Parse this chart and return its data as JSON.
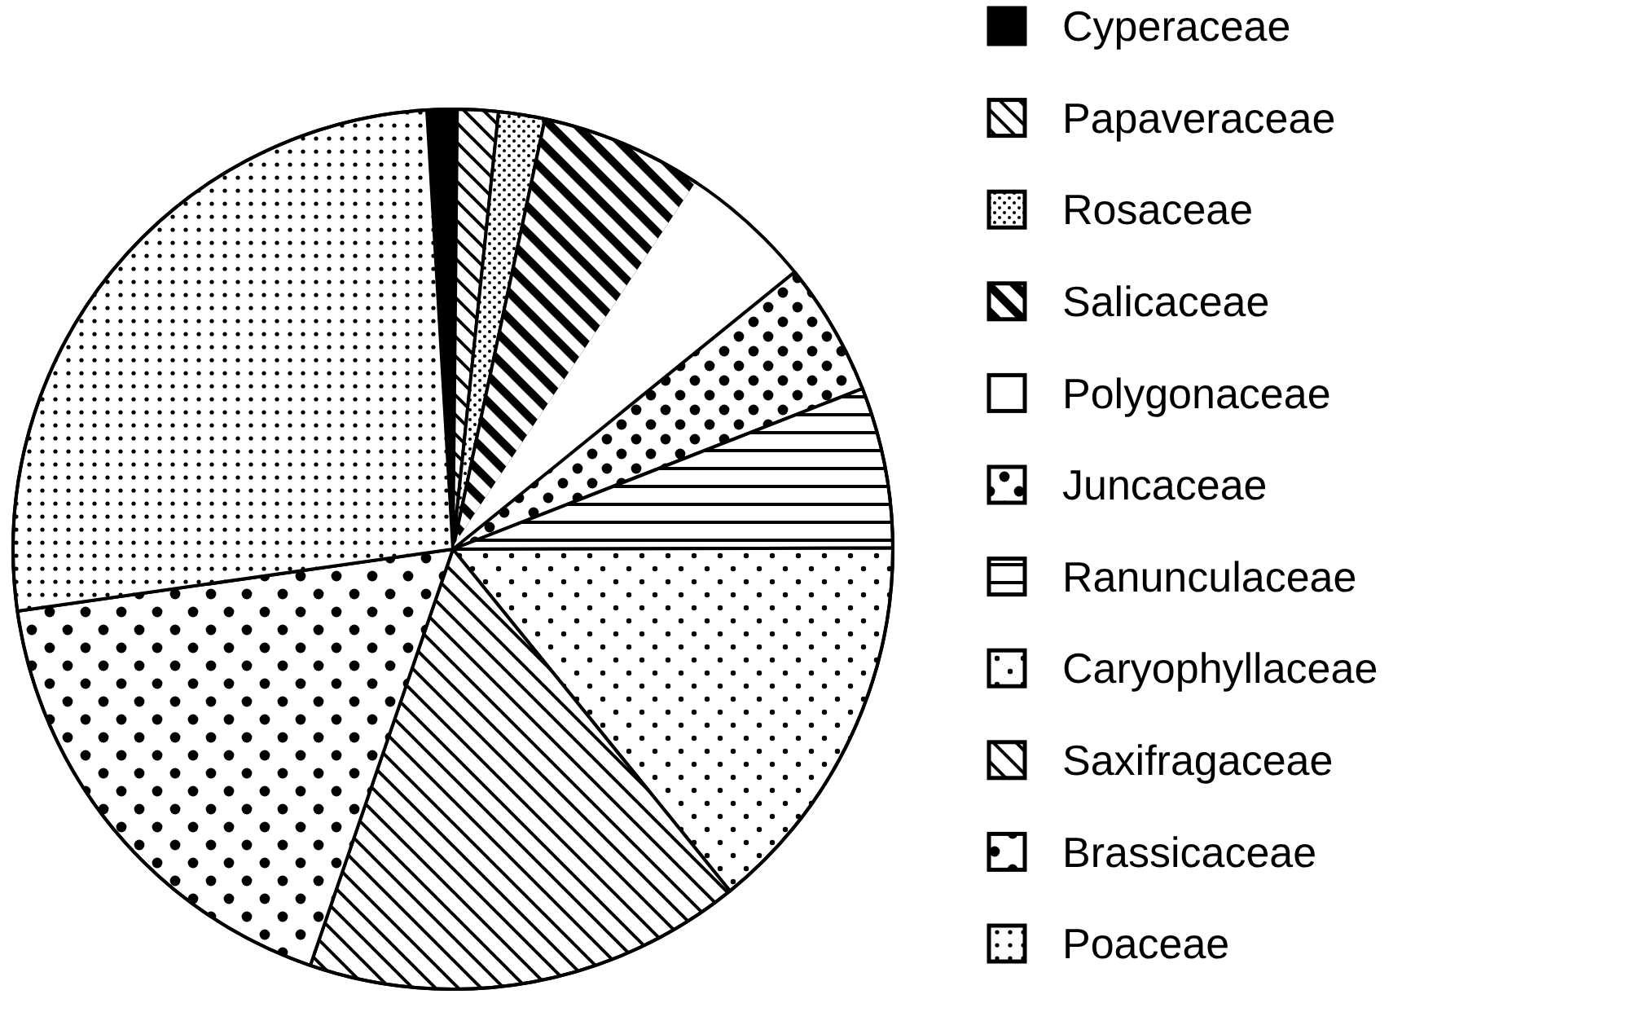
{
  "chart_data": {
    "type": "pie",
    "categories": [
      "Cyperaceae",
      "Papaveraceae",
      "Rosaceae",
      "Salicaceae",
      "Polygonaceae",
      "Juncaceae",
      "Ranunculaceae",
      "Caryophyllaceae",
      "Saxifragaceae",
      "Brassicaceae",
      "Poaceae"
    ],
    "values": [
      1.1,
      1.5,
      1.7,
      6.0,
      4.8,
      4.9,
      5.9,
      14.2,
      16.1,
      17.5,
      26.3
    ],
    "colors": [
      "#000000",
      "#000000",
      "#000000",
      "#000000",
      "#ffffff",
      "#000000",
      "#000000",
      "#000000",
      "#000000",
      "#000000",
      "#000000"
    ],
    "legend": "right"
  }
}
